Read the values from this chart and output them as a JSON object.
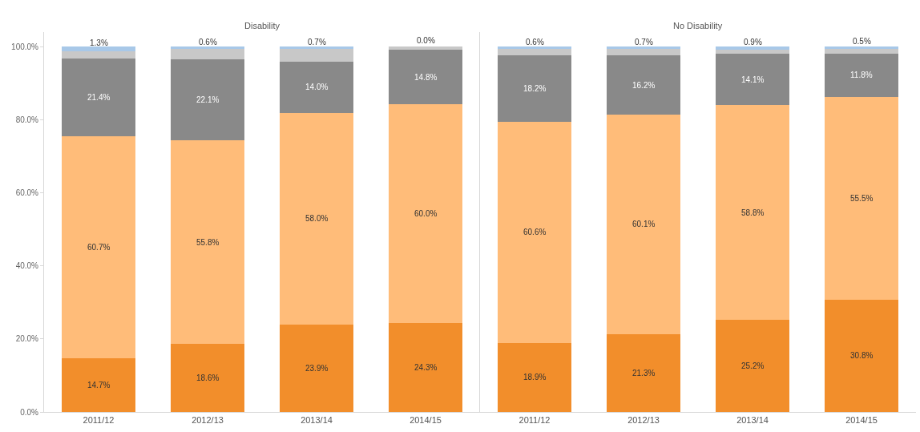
{
  "chart_data": [
    {
      "type": "bar",
      "title": "Disability",
      "stacked": true,
      "categories": [
        "2011/12",
        "2012/13",
        "2013/14",
        "2014/15"
      ],
      "ylim": [
        0,
        104
      ],
      "yticks": [
        {
          "value": 0,
          "label": "0.0%"
        },
        {
          "value": 20,
          "label": "20.0%"
        },
        {
          "value": 40,
          "label": "40.0%"
        },
        {
          "value": 60,
          "label": "60.0%"
        },
        {
          "value": 80,
          "label": "80.0%"
        },
        {
          "value": 100,
          "label": "100.0%"
        }
      ],
      "grid": false,
      "series": [
        {
          "color": "#f28e2b",
          "values": [
            14.7,
            18.6,
            23.9,
            24.3
          ],
          "value_labels": [
            "14.7%",
            "18.6%",
            "23.9%",
            "24.3%"
          ]
        },
        {
          "color": "#ffbc79",
          "values": [
            60.7,
            55.8,
            58.0,
            60.0
          ],
          "value_labels": [
            "60.7%",
            "55.8%",
            "58.0%",
            "60.0%"
          ]
        },
        {
          "color": "#898989",
          "values": [
            21.4,
            22.1,
            14.0,
            14.8
          ],
          "value_labels": [
            "21.4%",
            "22.1%",
            "14.0%",
            "14.8%"
          ]
        },
        {
          "color": "#c8c8c8",
          "values": [
            1.9,
            2.9,
            3.4,
            0.9
          ],
          "value_labels": [
            null,
            null,
            null,
            null
          ]
        },
        {
          "color": "#a8c8e8",
          "values": [
            1.3,
            0.6,
            0.7,
            0.0
          ],
          "value_labels": [
            "1.3%",
            "0.6%",
            "0.7%",
            "0.0%"
          ]
        }
      ]
    },
    {
      "type": "bar",
      "title": "No Disability",
      "stacked": true,
      "categories": [
        "2011/12",
        "2012/13",
        "2013/14",
        "2014/15"
      ],
      "ylim": [
        0,
        104
      ],
      "tick_labels": "x",
      "grid": false,
      "series": [
        {
          "color": "#f28e2b",
          "values": [
            18.9,
            21.3,
            25.2,
            30.8
          ],
          "value_labels": [
            "18.9%",
            "21.3%",
            "25.2%",
            "30.8%"
          ]
        },
        {
          "color": "#ffbc79",
          "values": [
            60.6,
            60.1,
            58.8,
            55.5
          ],
          "value_labels": [
            "60.6%",
            "60.1%",
            "58.8%",
            "55.5%"
          ]
        },
        {
          "color": "#898989",
          "values": [
            18.2,
            16.2,
            14.1,
            11.8
          ],
          "value_labels": [
            "18.2%",
            "16.2%",
            "14.1%",
            "11.8%"
          ]
        },
        {
          "color": "#c8c8c8",
          "values": [
            1.7,
            1.7,
            1.0,
            1.4
          ],
          "value_labels": [
            null,
            null,
            null,
            null
          ]
        },
        {
          "color": "#a8c8e8",
          "values": [
            0.6,
            0.7,
            0.9,
            0.5
          ],
          "value_labels": [
            "0.6%",
            "0.7%",
            "0.9%",
            "0.5%"
          ]
        }
      ]
    }
  ]
}
